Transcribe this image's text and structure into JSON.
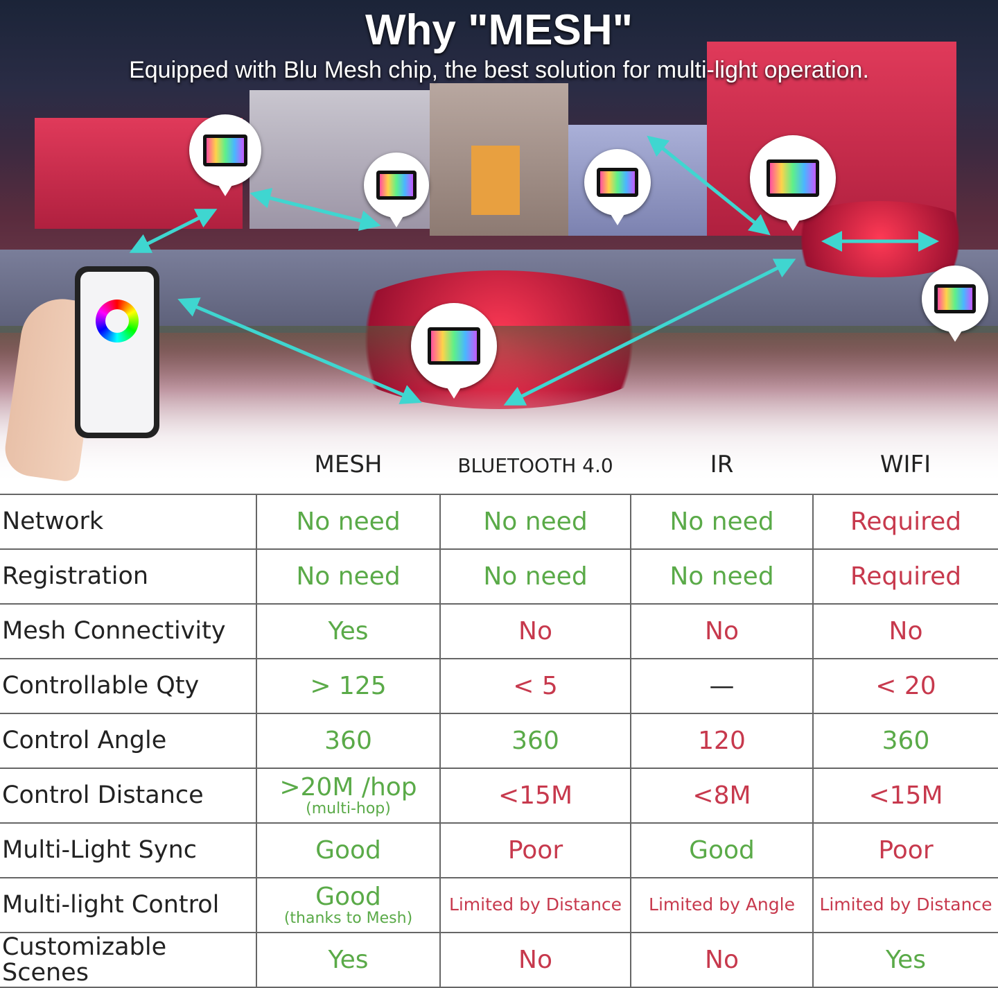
{
  "title": "Why \"MESH\"",
  "subtitle": "Equipped with Blu Mesh chip, the best solution for multi-light operation.",
  "colors": {
    "good": "#5aaa48",
    "bad": "#c7394d",
    "arrow": "#3fd6d0"
  },
  "columns": [
    "MESH",
    "BLUETOOTH 4.0",
    "IR",
    "WIFI"
  ],
  "rows": [
    {
      "label": "Network",
      "cells": [
        {
          "v": "No need",
          "c": "g"
        },
        {
          "v": "No need",
          "c": "g"
        },
        {
          "v": "No need",
          "c": "g"
        },
        {
          "v": "Required",
          "c": "r"
        }
      ]
    },
    {
      "label": "Registration",
      "cells": [
        {
          "v": "No need",
          "c": "g"
        },
        {
          "v": "No need",
          "c": "g"
        },
        {
          "v": "No need",
          "c": "g"
        },
        {
          "v": "Required",
          "c": "r"
        }
      ]
    },
    {
      "label": "Mesh Connectivity",
      "cells": [
        {
          "v": "Yes",
          "c": "g"
        },
        {
          "v": "No",
          "c": "r"
        },
        {
          "v": "No",
          "c": "r"
        },
        {
          "v": "No",
          "c": "r"
        }
      ]
    },
    {
      "label": "Controllable Qty",
      "cells": [
        {
          "v": "> 125",
          "c": "g"
        },
        {
          "v": "< 5",
          "c": "r"
        },
        {
          "v": "—",
          "c": "k"
        },
        {
          "v": "< 20",
          "c": "r"
        }
      ]
    },
    {
      "label": "Control Angle",
      "cells": [
        {
          "v": "360",
          "c": "g"
        },
        {
          "v": "360",
          "c": "g"
        },
        {
          "v": "120",
          "c": "r"
        },
        {
          "v": "360",
          "c": "g"
        }
      ]
    },
    {
      "label": "Control Distance",
      "cells": [
        {
          "v": ">20M /hop",
          "sub": "(multi-hop)",
          "c": "g"
        },
        {
          "v": "<15M",
          "c": "r"
        },
        {
          "v": "<8M",
          "c": "r"
        },
        {
          "v": "<15M",
          "c": "r"
        }
      ]
    },
    {
      "label": "Multi-Light Sync",
      "cells": [
        {
          "v": "Good",
          "c": "g"
        },
        {
          "v": "Poor",
          "c": "r"
        },
        {
          "v": "Good",
          "c": "g"
        },
        {
          "v": "Poor",
          "c": "r"
        }
      ]
    },
    {
      "label": "Multi-light Control",
      "cells": [
        {
          "v": "Good",
          "sub": "(thanks to Mesh)",
          "c": "g"
        },
        {
          "v": "Limited by Distance",
          "c": "r",
          "small": true
        },
        {
          "v": "Limited by Angle",
          "c": "r",
          "small": true
        },
        {
          "v": "Limited by Distance",
          "c": "r",
          "small": true
        }
      ]
    },
    {
      "label": "Customizable Scenes",
      "cells": [
        {
          "v": "Yes",
          "c": "g"
        },
        {
          "v": "No",
          "c": "r"
        },
        {
          "v": "No",
          "c": "r"
        },
        {
          "v": "Yes",
          "c": "g"
        }
      ]
    }
  ]
}
